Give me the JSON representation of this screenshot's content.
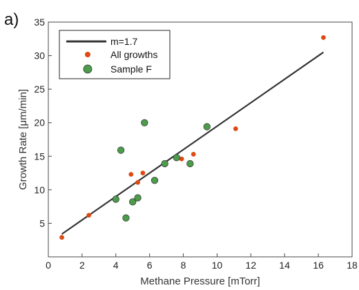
{
  "panel_label": "a)",
  "chart_data": {
    "type": "scatter",
    "xlabel": "Methane Pressure [mTorr]",
    "ylabel": "Growth Rate [μm/min]",
    "xlim": [
      0,
      18
    ],
    "ylim": [
      0,
      35
    ],
    "xticks": [
      0,
      2,
      4,
      6,
      8,
      10,
      12,
      14,
      16,
      18
    ],
    "yticks": [
      5,
      10,
      15,
      20,
      25,
      30,
      35
    ],
    "grid": false,
    "legend_position": "top-left",
    "fit_line": {
      "name": "m=1.7",
      "color": "#333333",
      "x": [
        0.8,
        16.3
      ],
      "y": [
        3.4,
        30.5
      ]
    },
    "series": [
      {
        "name": "All growths",
        "color": "#dd4a12",
        "marker": "small-circle",
        "x": [
          0.8,
          2.4,
          4.9,
          5.3,
          5.6,
          7.9,
          8.6,
          11.1,
          16.3
        ],
        "y": [
          2.9,
          6.2,
          12.3,
          11.1,
          12.5,
          14.6,
          15.3,
          19.1,
          32.7
        ]
      },
      {
        "name": "Sample F",
        "color": "#4c9c4c",
        "marker": "circle",
        "x": [
          4.0,
          4.3,
          4.6,
          5.0,
          5.3,
          5.7,
          6.3,
          6.9,
          7.6,
          8.4,
          9.4
        ],
        "y": [
          8.6,
          15.9,
          5.8,
          8.2,
          8.8,
          20.0,
          11.4,
          13.9,
          14.8,
          13.9,
          19.4
        ]
      }
    ]
  }
}
